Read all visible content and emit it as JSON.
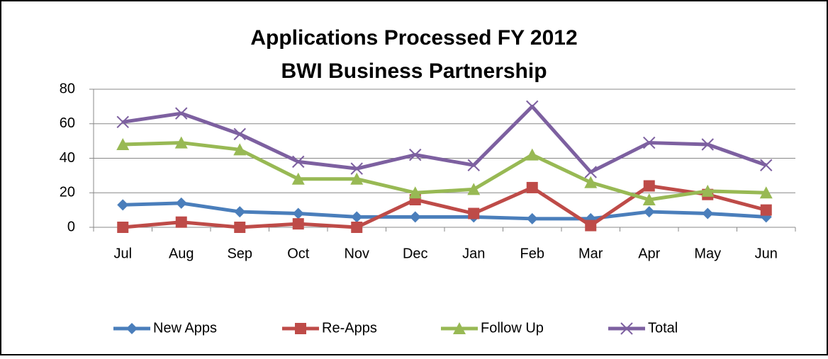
{
  "chart_data": {
    "type": "line",
    "title": "Applications Processed FY 2012",
    "subtitle": "BWI Business Partnership",
    "categories": [
      "Jul",
      "Aug",
      "Sep",
      "Oct",
      "Nov",
      "Dec",
      "Jan",
      "Feb",
      "Mar",
      "Apr",
      "May",
      "Jun"
    ],
    "series": [
      {
        "name": "New Apps",
        "color": "#4a7ebb",
        "marker": "diamond",
        "values": [
          13,
          14,
          9,
          8,
          6,
          6,
          6,
          5,
          5,
          9,
          8,
          6
        ]
      },
      {
        "name": "Re-Apps",
        "color": "#be4b48",
        "marker": "square",
        "values": [
          0,
          3,
          0,
          2,
          0,
          16,
          8,
          23,
          1,
          24,
          19,
          10
        ]
      },
      {
        "name": "Follow Up",
        "color": "#98b954",
        "marker": "triangle",
        "values": [
          48,
          49,
          45,
          28,
          28,
          20,
          22,
          42,
          26,
          16,
          21,
          20
        ]
      },
      {
        "name": "Total",
        "color": "#7d60a0",
        "marker": "x",
        "values": [
          61,
          66,
          54,
          38,
          34,
          42,
          36,
          70,
          32,
          49,
          48,
          36
        ]
      }
    ],
    "ylim": [
      0,
      80
    ],
    "yticks": [
      0,
      20,
      40,
      60,
      80
    ],
    "grid": true,
    "legend": "bottom"
  }
}
